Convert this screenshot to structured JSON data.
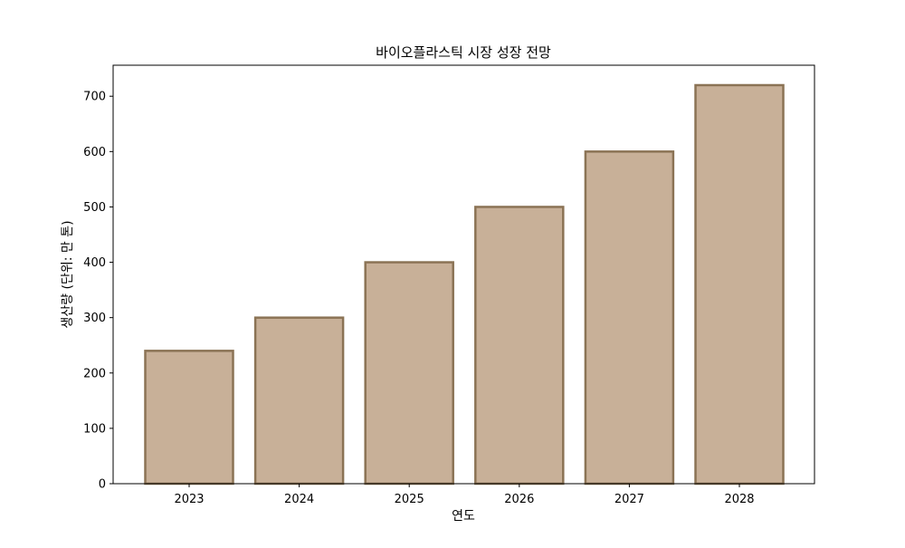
{
  "chart_data": {
    "type": "bar",
    "title": "바이오플라스틱 시장 성장 전망",
    "xlabel": "연도",
    "ylabel": "생산량 (단위: 만 톤)",
    "categories": [
      "2023",
      "2024",
      "2025",
      "2026",
      "2027",
      "2028"
    ],
    "values": [
      240,
      300,
      400,
      500,
      600,
      720
    ],
    "ylim": [
      0,
      756
    ],
    "yticks": [
      "0",
      "100",
      "200",
      "300",
      "400",
      "500",
      "600",
      "700"
    ],
    "grid": false,
    "legend": "none",
    "colors": {
      "bar_fill": "#c8b098",
      "bar_edge": "#8b7355",
      "axis": "#000000"
    }
  }
}
